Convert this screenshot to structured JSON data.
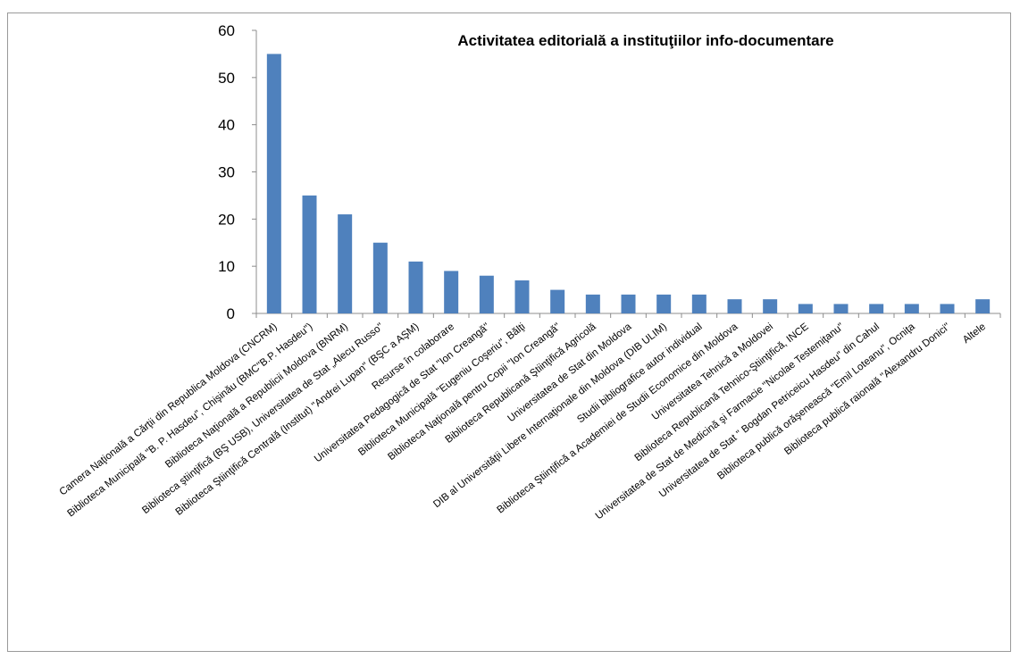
{
  "chart_data": {
    "type": "bar",
    "title": "Activitatea editorială a instituţiilor info-documentare",
    "xlabel": "",
    "ylabel": "",
    "ylim": [
      0,
      60
    ],
    "yticks": [
      0,
      10,
      20,
      30,
      40,
      50,
      60
    ],
    "grid": false,
    "legend": "none",
    "bar_color": "#4f81bd",
    "categories": [
      "Camera Naţională a Cărţii din Republica Moldova (CNCRM)",
      "Biblioteca Municipală \"B. P. Hasdeu\", Chişinău (BMC\"B.P. Hasdeu\")",
      "Biblioteca Naţională a Republicii Moldova (BNRM)",
      "Biblioteca ştiinţifică (BŞ USB), Universitatea de Stat „Alecu Russo\"",
      "Biblioteca Ştiinţifică Centrală (Institut) \"Andrei Lupan\" (BŞC a AŞM)",
      "Resurse în colaborare",
      "Universitatea Pedagogică de Stat \"Ion Creangă\"",
      "Biblioteca Municipală \"Eugeniu Coşeriu\", Bălţi",
      "Biblioteca Naţională pentru Copii \"Ion Creangă\"",
      "Biblioteca Republicană Ştiinţifică Agricolă",
      "Universitatea de Stat din Moldova",
      "DIB al Universităţii Libere Internaţionale din Moldova (DIB ULIM)",
      "Studii bibliografice autor individual",
      "Biblioteca Ştiinţifică a Academiei de Studii Economice din Moldova",
      "Universitatea Tehnică a Moldovei",
      "Biblioteca Republicană Tehnico-Ştiinţifică, INCE",
      "Universitatea de Stat de Medicină şi Farmacie \"Nicolae Testemiţanu\"",
      "Universitatea de Stat \" Bogdan Petriceicu Hasdeu\" din Cahul",
      "Biblioteca publică orăşenească \"Emil Loteanu\", Ocniţa",
      "Biblioteca publică raională \"Alexandru Donici\"",
      "Altele"
    ],
    "values": [
      55,
      25,
      21,
      15,
      11,
      9,
      8,
      7,
      5,
      4,
      4,
      4,
      4,
      3,
      3,
      2,
      2,
      2,
      2,
      2,
      3
    ]
  }
}
